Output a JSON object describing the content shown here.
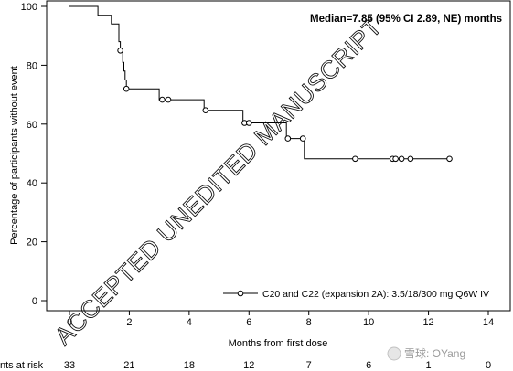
{
  "chart_data": {
    "type": "line",
    "subtype": "kaplan-meier",
    "annotation": "Median=7.85 (95% CI 2.89, NE) months",
    "xlabel": "Months from first dose",
    "ylabel": "Percentage of participants without event",
    "xlim": [
      -2,
      15
    ],
    "ylim": [
      -3,
      102
    ],
    "xticks": [
      0,
      2,
      4,
      6,
      8,
      10,
      12,
      14
    ],
    "yticks": [
      0,
      20,
      40,
      60,
      80,
      100
    ],
    "grid": false,
    "legend_position": "bottom-right",
    "series": [
      {
        "name": "C20 and C22 (expansion 2A): 3.5/18/300 mg Q6W IV",
        "color": "#000000",
        "step_points": [
          [
            0.0,
            100
          ],
          [
            0.95,
            100
          ],
          [
            0.95,
            97
          ],
          [
            1.4,
            97
          ],
          [
            1.4,
            94
          ],
          [
            1.65,
            94
          ],
          [
            1.65,
            88
          ],
          [
            1.7,
            88
          ],
          [
            1.7,
            85
          ],
          [
            1.78,
            85
          ],
          [
            1.78,
            81
          ],
          [
            1.82,
            81
          ],
          [
            1.82,
            78
          ],
          [
            1.86,
            78
          ],
          [
            1.86,
            75
          ],
          [
            1.9,
            75
          ],
          [
            1.9,
            72
          ],
          [
            3.0,
            72
          ],
          [
            3.0,
            68.3
          ],
          [
            4.5,
            68.3
          ],
          [
            4.5,
            64.7
          ],
          [
            5.8,
            64.7
          ],
          [
            5.8,
            60.4
          ],
          [
            7.25,
            60.4
          ],
          [
            7.25,
            55.1
          ],
          [
            7.85,
            55.1
          ],
          [
            7.85,
            48.2
          ],
          [
            12.7,
            48.2
          ]
        ],
        "censored": [
          [
            1.7,
            85
          ],
          [
            1.9,
            72
          ],
          [
            3.1,
            68.3
          ],
          [
            3.3,
            68.3
          ],
          [
            4.55,
            64.7
          ],
          [
            5.85,
            60.4
          ],
          [
            6.0,
            60.4
          ],
          [
            7.3,
            55.1
          ],
          [
            7.8,
            55.1
          ],
          [
            9.55,
            48.2
          ],
          [
            10.8,
            48.2
          ],
          [
            10.9,
            48.2
          ],
          [
            11.1,
            48.2
          ],
          [
            11.4,
            48.2
          ],
          [
            12.7,
            48.2
          ]
        ]
      }
    ],
    "risk_table": {
      "label": "nts at risk",
      "times": [
        0,
        2,
        4,
        6,
        8,
        10,
        12,
        14
      ],
      "counts": [
        "33",
        "21",
        "18",
        "12",
        "7",
        "6",
        "1",
        "0"
      ]
    }
  },
  "watermark": "ACCEPTED UNEDITED MANUSCRIPT",
  "footer_watermark": "雪球: OYang"
}
